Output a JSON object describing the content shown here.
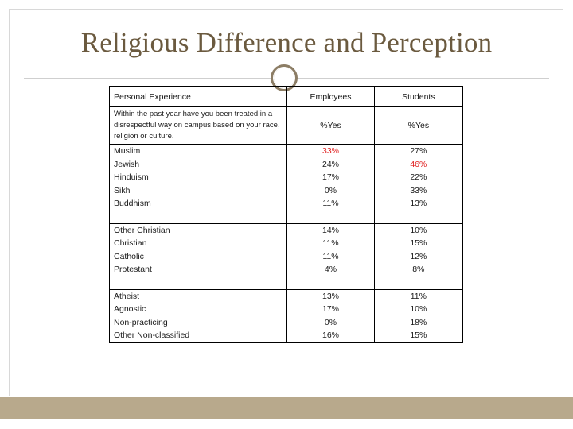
{
  "title": "Religious Difference and Perception",
  "colors": {
    "accent": "#b8a98c",
    "title": "#6b5a3f",
    "highlight": "#e02020"
  },
  "table": {
    "headers": [
      "Personal Experience",
      "Employees",
      "Students"
    ],
    "question": {
      "text": "Within the past year have you been treated in a disrespectful way on campus based on your race, religion or culture.",
      "employees": "%Yes",
      "students": "%Yes"
    },
    "groups": [
      [
        {
          "label": "Muslim",
          "employees": "33%",
          "students": "27%"
        },
        {
          "label": "Jewish",
          "employees": "24%",
          "students": "46%"
        },
        {
          "label": "Hinduism",
          "employees": "17%",
          "students": "22%"
        },
        {
          "label": "Sikh",
          "employees": "0%",
          "students": "33%"
        },
        {
          "label": "Buddhism",
          "employees": "11%",
          "students": "13%"
        }
      ],
      [
        {
          "label": "Other Christian",
          "employees": "14%",
          "students": "10%"
        },
        {
          "label": "Christian",
          "employees": "11%",
          "students": "15%"
        },
        {
          "label": "Catholic",
          "employees": "11%",
          "students": "12%"
        },
        {
          "label": "Protestant",
          "employees": "4%",
          "students": "8%"
        }
      ],
      [
        {
          "label": "Atheist",
          "employees": "13%",
          "students": "11%"
        },
        {
          "label": "Agnostic",
          "employees": "17%",
          "students": "10%"
        },
        {
          "label": "Non-practicing",
          "employees": "0%",
          "students": "18%"
        },
        {
          "label": "Other Non-classified",
          "employees": "16%",
          "students": "15%"
        }
      ]
    ]
  }
}
